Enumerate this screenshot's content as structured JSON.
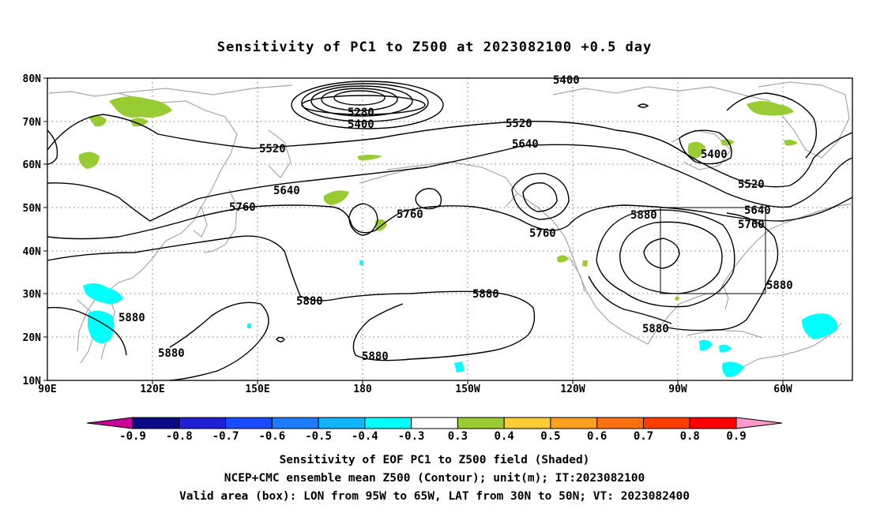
{
  "title": "Sensitivity of PC1 to Z500 at 2023082100 +0.5 day",
  "map": {
    "lat_ticks": [
      "80N",
      "70N",
      "60N",
      "50N",
      "40N",
      "30N",
      "20N",
      "10N"
    ],
    "lon_ticks": [
      "90E",
      "120E",
      "150E",
      "180",
      "150W",
      "120W",
      "90W",
      "60W"
    ],
    "contour_labels": [
      "5280",
      "5400",
      "5520",
      "5640",
      "5760",
      "5880",
      "5400",
      "5520",
      "5640",
      "5760",
      "5880"
    ],
    "valid_box": {
      "lon_from": "95W",
      "lon_to": "65W",
      "lat_from": "30N",
      "lat_to": "50N"
    }
  },
  "colorbar": {
    "labels": [
      "-0.9",
      "-0.8",
      "-0.7",
      "-0.6",
      "-0.5",
      "-0.4",
      "-0.3",
      "0.3",
      "0.4",
      "0.5",
      "0.6",
      "0.7",
      "0.8",
      "0.9"
    ],
    "colors": [
      "#0b0b8a",
      "#1f1fd6",
      "#1a4cff",
      "#1e7dff",
      "#12b3ff",
      "#00ffff",
      "#ffffff",
      "#99cc33",
      "#ffcc33",
      "#ffa020",
      "#ff7010",
      "#ff3d00",
      "#ff0000"
    ],
    "low_end_color": "#cc0099",
    "high_end_color": "#ff99cc"
  },
  "captions": {
    "line1": "Sensitivity of EOF PC1 to Z500 field (Shaded)",
    "line2": "NCEP+CMC ensemble mean Z500 (Contour); unit(m); IT:2023082100",
    "line3": "Valid area (box): LON from 95W to 65W, LAT from 30N to 50N; VT: 2023082400"
  }
}
